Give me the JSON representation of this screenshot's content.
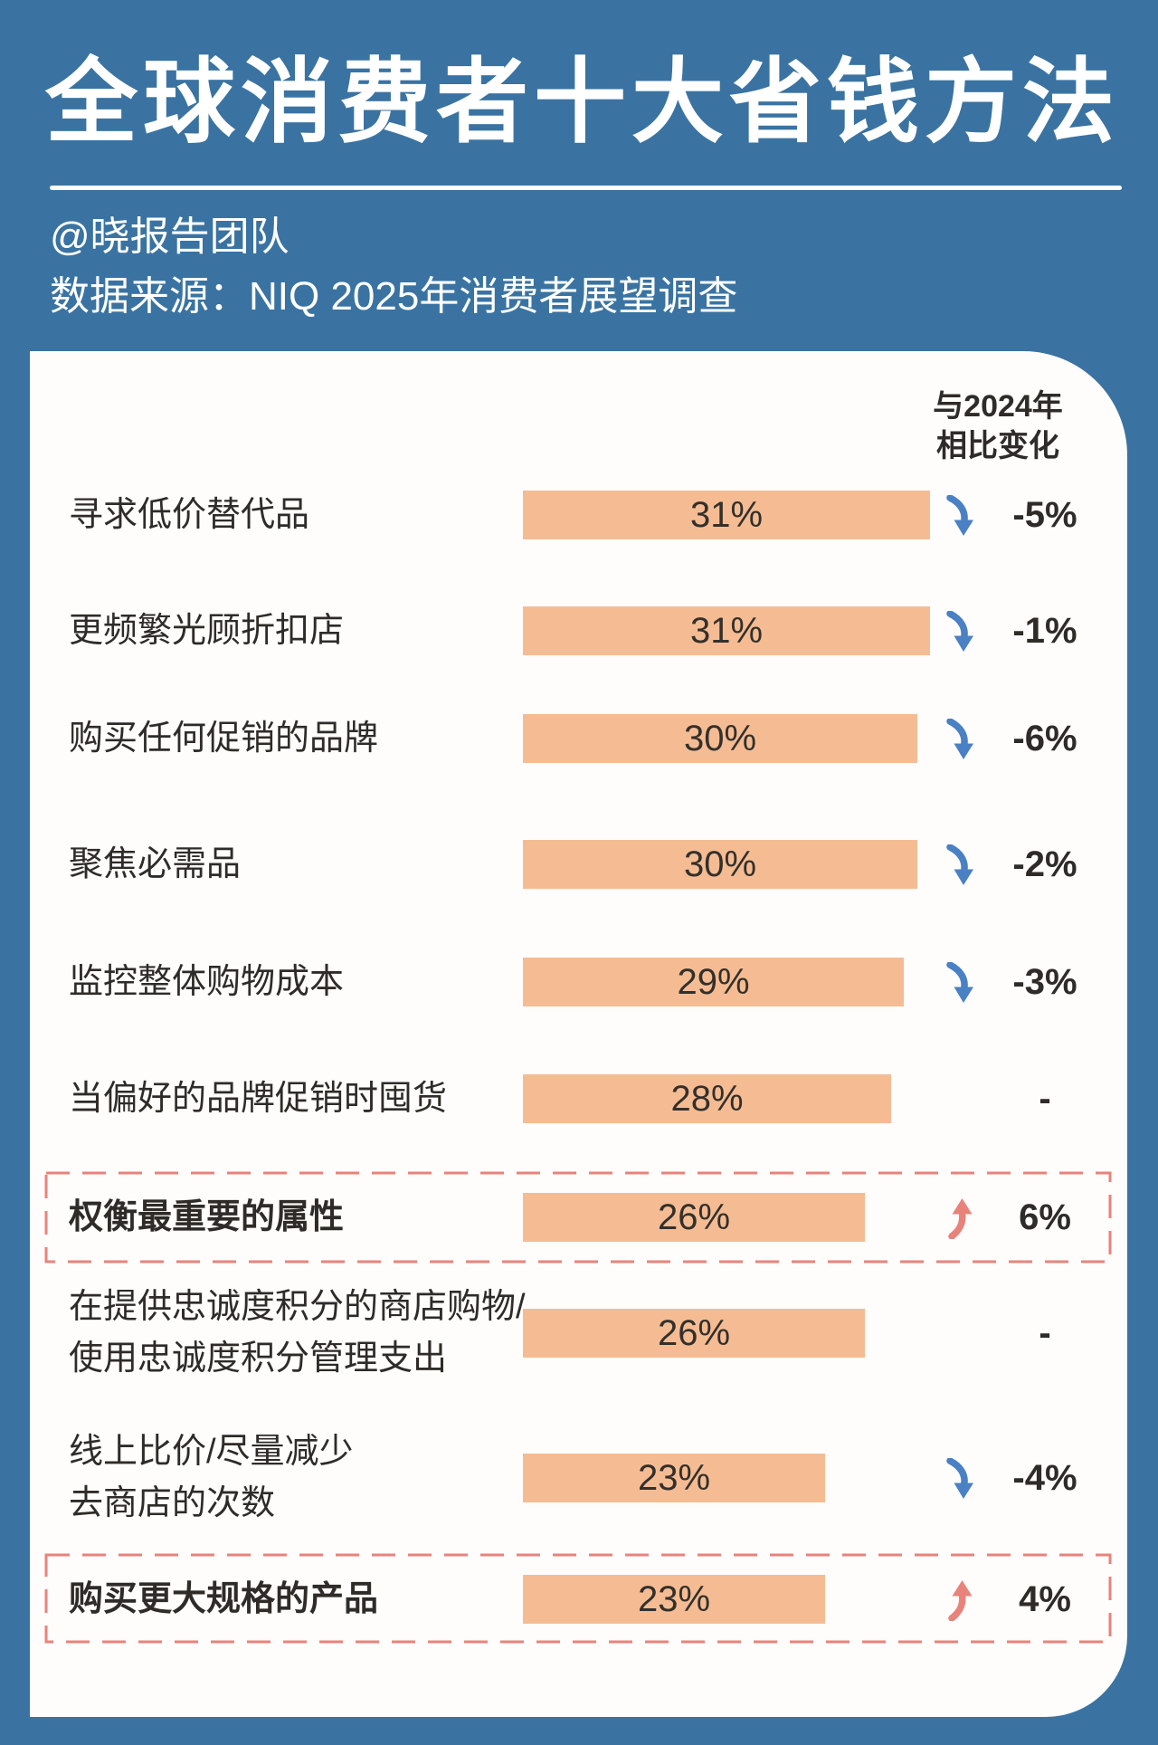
{
  "title": "全球消费者十大省钱方法",
  "byline": "@晓报告团队",
  "source": "数据来源：NIQ 2025年消费者展望调查",
  "change_header": {
    "line1": "与2024年",
    "line2": "相比变化"
  },
  "colors": {
    "background": "#3a73a1",
    "card": "#fefdfb",
    "bar": "#f5bc93",
    "down_arrow": "#4a80c4",
    "up_arrow": "#e8837b",
    "highlight_border": "#e8837b",
    "dark_text": "#2e2b28",
    "title_text": "#ffffff"
  },
  "chart_data": {
    "type": "bar",
    "orientation": "horizontal",
    "title": "全球消费者十大省钱方法",
    "value_unit": "%",
    "value_range": [
      0,
      31
    ],
    "categories": [
      "寻求低价替代品",
      "更频繁光顾折扣店",
      "购买任何促销的品牌",
      "聚焦必需品",
      "监控整体购物成本",
      "当偏好的品牌促销时囤货",
      "权衡最重要的属性",
      "在提供忠诚度积分的商店购物/使用忠诚度积分管理支出",
      "线上比价/尽量减少去商店的次数",
      "购买更大规格的产品"
    ],
    "values": [
      31,
      31,
      30,
      30,
      29,
      28,
      26,
      26,
      23,
      23
    ],
    "changes_vs_2024": [
      "-5%",
      "-1%",
      "-6%",
      "-2%",
      "-3%",
      "-",
      "6%",
      "-",
      "-4%",
      "4%"
    ],
    "rows": [
      {
        "lines": [
          "寻求低价替代品"
        ],
        "value": 31,
        "value_label": "31%",
        "change": "-5%",
        "change_direction": "down",
        "highlighted": false
      },
      {
        "lines": [
          "更频繁光顾折扣店"
        ],
        "value": 31,
        "value_label": "31%",
        "change": "-1%",
        "change_direction": "down",
        "highlighted": false
      },
      {
        "lines": [
          "购买任何促销的品牌"
        ],
        "value": 30,
        "value_label": "30%",
        "change": "-6%",
        "change_direction": "down",
        "highlighted": false
      },
      {
        "lines": [
          "聚焦必需品"
        ],
        "value": 30,
        "value_label": "30%",
        "change": "-2%",
        "change_direction": "down",
        "highlighted": false
      },
      {
        "lines": [
          "监控整体购物成本"
        ],
        "value": 29,
        "value_label": "29%",
        "change": "-3%",
        "change_direction": "down",
        "highlighted": false
      },
      {
        "lines": [
          "当偏好的品牌促销时囤货"
        ],
        "value": 28,
        "value_label": "28%",
        "change": "-",
        "change_direction": "none",
        "highlighted": false
      },
      {
        "lines": [
          "权衡最重要的属性"
        ],
        "value": 26,
        "value_label": "26%",
        "change": "6%",
        "change_direction": "up",
        "highlighted": true
      },
      {
        "lines": [
          "在提供忠诚度积分的商店购物/",
          "使用忠诚度积分管理支出"
        ],
        "value": 26,
        "value_label": "26%",
        "change": "-",
        "change_direction": "none",
        "highlighted": false
      },
      {
        "lines": [
          "线上比价/尽量减少",
          "去商店的次数"
        ],
        "value": 23,
        "value_label": "23%",
        "change": "-4%",
        "change_direction": "down",
        "highlighted": false
      },
      {
        "lines": [
          "购买更大规格的产品"
        ],
        "value": 23,
        "value_label": "23%",
        "change": "4%",
        "change_direction": "up",
        "highlighted": true
      }
    ]
  }
}
